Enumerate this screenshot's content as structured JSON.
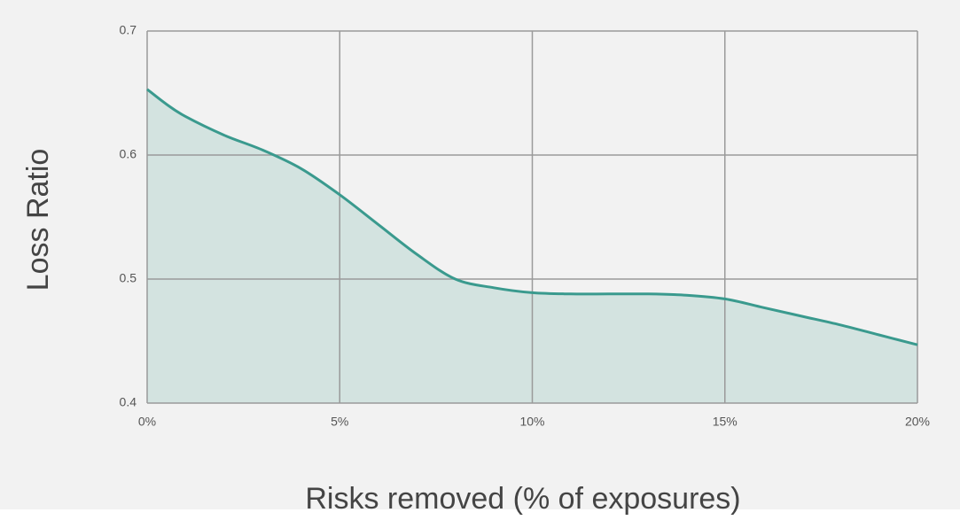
{
  "chart_data": {
    "type": "area",
    "xlabel": "Risks removed (% of exposures)",
    "ylabel": "Loss Ratio",
    "x": [
      0,
      0.5,
      1,
      2,
      3,
      4,
      5,
      6,
      7,
      8,
      9,
      10,
      11,
      12,
      13,
      14,
      15,
      16,
      17,
      18,
      19,
      20
    ],
    "series": [
      {
        "color": "#3a9a8e",
        "fill": "#d3e3e0",
        "values": [
          0.653,
          0.641,
          0.631,
          0.616,
          0.604,
          0.589,
          0.568,
          0.544,
          0.52,
          0.5,
          0.493,
          0.489,
          0.488,
          0.488,
          0.488,
          0.487,
          0.484,
          0.477,
          0.47,
          0.463,
          0.455,
          0.447
        ]
      }
    ],
    "xlim": [
      0,
      20
    ],
    "xticks": [
      {
        "value": 0,
        "label": "0%"
      },
      {
        "value": 5,
        "label": "5%"
      },
      {
        "value": 10,
        "label": "10%"
      },
      {
        "value": 15,
        "label": "15%"
      },
      {
        "value": 20,
        "label": "20%"
      }
    ],
    "ylim": [
      0.4,
      0.7
    ],
    "yticks": [
      0.4,
      0.5,
      0.6,
      0.7
    ],
    "grid": true
  }
}
